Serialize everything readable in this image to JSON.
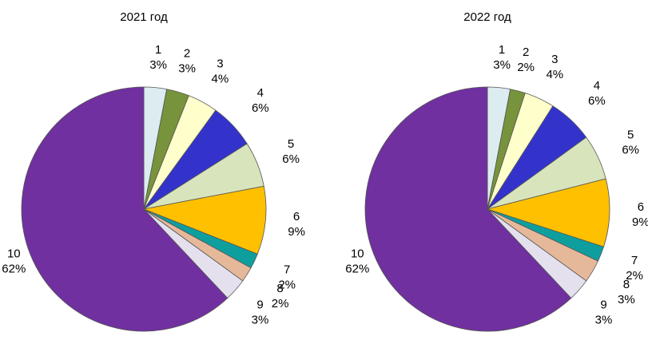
{
  "chart_data": [
    {
      "type": "pie",
      "title": "2021 год",
      "slices": [
        {
          "label": "1",
          "value": 3,
          "pct": "3%",
          "color": "#dcecf0"
        },
        {
          "label": "2",
          "value": 3,
          "pct": "3%",
          "color": "#77933c"
        },
        {
          "label": "3",
          "value": 4,
          "pct": "4%",
          "color": "#ffffcc"
        },
        {
          "label": "4",
          "value": 6,
          "pct": "6%",
          "color": "#3333cc"
        },
        {
          "label": "5",
          "value": 6,
          "pct": "6%",
          "color": "#d8e4bc"
        },
        {
          "label": "6",
          "value": 9,
          "pct": "9%",
          "color": "#ffc000"
        },
        {
          "label": "7",
          "value": 2,
          "pct": "2%",
          "color": "#0f9e9e"
        },
        {
          "label": "8",
          "value": 2,
          "pct": "2%",
          "color": "#e6b89a"
        },
        {
          "label": "9",
          "value": 3,
          "pct": "3%",
          "color": "#e4e0ee"
        },
        {
          "label": "10",
          "value": 62,
          "pct": "62%",
          "color": "#7030a0"
        }
      ]
    },
    {
      "type": "pie",
      "title": "2022 год",
      "slices": [
        {
          "label": "1",
          "value": 3,
          "pct": "3%",
          "color": "#dcecf0"
        },
        {
          "label": "2",
          "value": 2,
          "pct": "2%",
          "color": "#77933c"
        },
        {
          "label": "3",
          "value": 4,
          "pct": "4%",
          "color": "#ffffcc"
        },
        {
          "label": "4",
          "value": 6,
          "pct": "6%",
          "color": "#3333cc"
        },
        {
          "label": "5",
          "value": 6,
          "pct": "6%",
          "color": "#d8e4bc"
        },
        {
          "label": "6",
          "value": 9,
          "pct": "9%",
          "color": "#ffc000"
        },
        {
          "label": "7",
          "value": 2,
          "pct": "2%",
          "color": "#0f9e9e"
        },
        {
          "label": "8",
          "value": 3,
          "pct": "3%",
          "color": "#e6b89a"
        },
        {
          "label": "9",
          "value": 3,
          "pct": "3%",
          "color": "#e4e0ee"
        },
        {
          "label": "10",
          "value": 62,
          "pct": "62%",
          "color": "#7030a0"
        }
      ]
    }
  ]
}
